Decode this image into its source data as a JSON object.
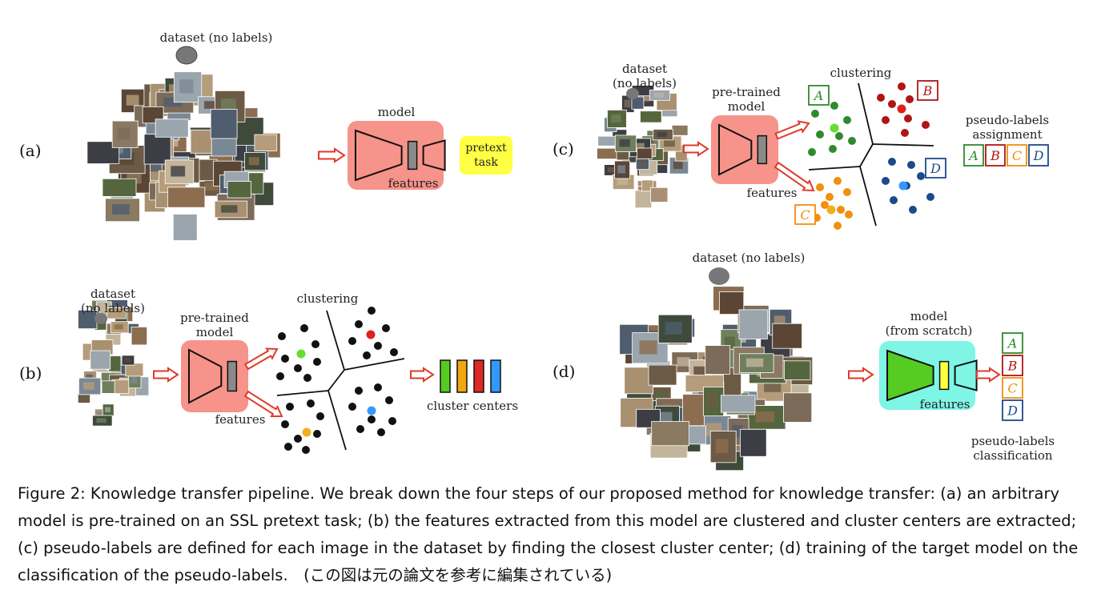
{
  "panels": {
    "a": {
      "tag": "(a)",
      "dataset_label": "dataset (no labels)",
      "model_label": "model",
      "features_label": "features",
      "pretext_label": "pretext\ntask"
    },
    "b": {
      "tag": "(b)",
      "dataset_label": "dataset\n(no labels)",
      "model_label": "pre-trained\nmodel",
      "features_label": "features",
      "clustering_label": "clustering",
      "centers_label": "cluster centers"
    },
    "c": {
      "tag": "(c)",
      "dataset_label": "dataset\n(no labels)",
      "model_label": "pre-trained\nmodel",
      "features_label": "features",
      "clustering_label": "clustering",
      "assignment_label": "pseudo-labels\nassignment",
      "letters": [
        "A",
        "B",
        "C",
        "D"
      ]
    },
    "d": {
      "tag": "(d)",
      "dataset_label": "dataset (no labels)",
      "model_label": "model\n(from scratch)",
      "features_label": "features",
      "classification_label": "pseudo-labels\nclassification",
      "letters": [
        "A",
        "B",
        "C",
        "D"
      ]
    }
  },
  "colors": {
    "model_box": "#f6938a",
    "model_box_d": "#7ff5e6",
    "pretext_box": "#ffff44",
    "arrow": "#e03a2a",
    "cluster_a": "#2e8b2e",
    "cluster_b": "#b01515",
    "cluster_c": "#f0900c",
    "cluster_d": "#1c4a8a",
    "green_center": "#66dd33",
    "red_center": "#e02020",
    "yellow_center": "#f0b020",
    "blue_center": "#3399ff"
  },
  "caption": "Figure 2: Knowledge transfer pipeline. We break down the four steps of our proposed method for knowledge transfer: (a) an arbitrary model is pre-trained on an SSL pretext task; (b) the features extracted from this model are clustered and cluster centers are extracted; (c) pseudo-labels are defined for each image in the dataset by finding the closest cluster center; (d) training of the target model on the classification of the pseudo-labels.　(この図は元の論文を参考に編集されている)"
}
